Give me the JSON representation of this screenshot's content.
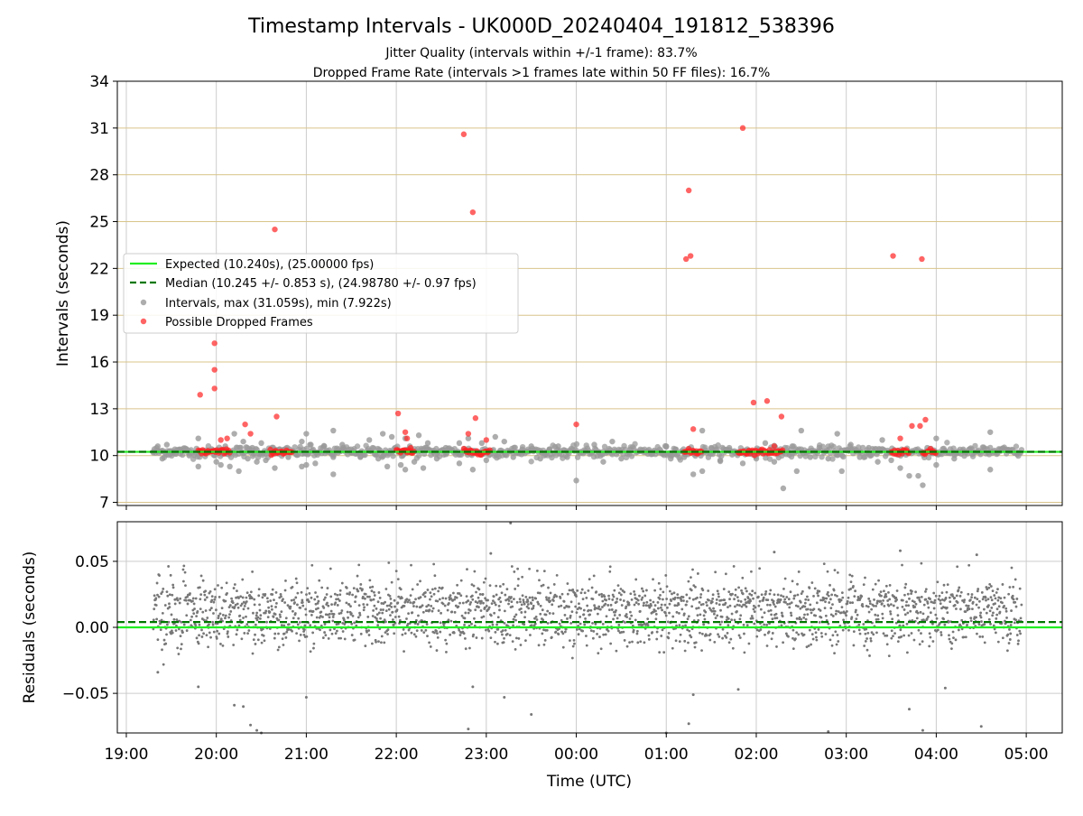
{
  "figure": {
    "title": "Timestamp Intervals - UK000D_20240404_191812_538396",
    "subtitle_1": "Jitter Quality (intervals within +/-1 frame): 83.7%",
    "subtitle_2": "Dropped Frame Rate (intervals >1 frames late within 50 FF files): 16.7%"
  },
  "colors": {
    "expected": "#22ee22",
    "median": "#007700",
    "interval_points": "#999999",
    "dropped_points": "#ff2222",
    "residual_points": "#777777",
    "grid": "#cccccc",
    "hgrid_top": "#d9c48a"
  },
  "chart_data": [
    {
      "type": "scatter",
      "ylabel": "Intervals (seconds)",
      "ylim": [
        6.8,
        34
      ],
      "yticks": [
        7,
        10,
        13,
        16,
        19,
        22,
        25,
        28,
        31,
        34
      ],
      "xlim_hours": [
        18.9,
        29.4
      ],
      "xticks_hours": [
        19,
        20,
        21,
        22,
        23,
        24,
        25,
        26,
        27,
        28,
        29
      ],
      "expected": 10.24,
      "median": 10.245,
      "legend_position": "center-left",
      "legend": [
        "Expected (10.240s), (25.00000 fps)",
        "Median (10.245 +/- 0.853 s), (24.98780 +/- 0.97 fps)",
        "Intervals, max (31.059s), min (7.922s)",
        "Possible Dropped Frames"
      ],
      "series": [
        {
          "name": "Intervals, max (31.059s), min (7.922s)",
          "points": [
            [
              19.3,
              10.25
            ],
            [
              19.35,
              10.6
            ],
            [
              19.4,
              9.8
            ],
            [
              19.45,
              10.7
            ],
            [
              19.5,
              10.3
            ],
            [
              19.55,
              10.1
            ],
            [
              19.6,
              10.4
            ],
            [
              19.7,
              10.0
            ],
            [
              19.8,
              9.3
            ],
            [
              19.8,
              11.1
            ],
            [
              20.0,
              9.6
            ],
            [
              20.05,
              9.4
            ],
            [
              20.1,
              10.6
            ],
            [
              20.15,
              9.3
            ],
            [
              20.2,
              11.4
            ],
            [
              20.25,
              9.0
            ],
            [
              20.3,
              10.9
            ],
            [
              20.35,
              9.8
            ],
            [
              20.4,
              10.5
            ],
            [
              20.45,
              9.6
            ],
            [
              20.5,
              10.8
            ],
            [
              20.55,
              9.7
            ],
            [
              20.65,
              9.2
            ],
            [
              20.7,
              10.4
            ],
            [
              20.8,
              9.9
            ],
            [
              20.95,
              10.9
            ],
            [
              20.95,
              9.3
            ],
            [
              21.0,
              11.4
            ],
            [
              21.0,
              9.4
            ],
            [
              21.05,
              10.7
            ],
            [
              21.1,
              9.5
            ],
            [
              21.2,
              10.6
            ],
            [
              21.3,
              9.9
            ],
            [
              21.3,
              11.6
            ],
            [
              21.3,
              8.8
            ],
            [
              21.4,
              10.7
            ],
            [
              21.5,
              10.2
            ],
            [
              21.6,
              9.9
            ],
            [
              21.7,
              11.0
            ],
            [
              21.8,
              9.8
            ],
            [
              21.85,
              11.4
            ],
            [
              21.9,
              9.3
            ],
            [
              21.95,
              11.2
            ],
            [
              22.05,
              9.4
            ],
            [
              22.1,
              11.1
            ],
            [
              22.1,
              9.1
            ],
            [
              22.15,
              10.6
            ],
            [
              22.2,
              9.6
            ],
            [
              22.25,
              11.3
            ],
            [
              22.3,
              9.2
            ],
            [
              22.35,
              10.8
            ],
            [
              22.45,
              9.8
            ],
            [
              22.55,
              10.5
            ],
            [
              22.7,
              10.8
            ],
            [
              22.7,
              9.5
            ],
            [
              22.8,
              11.1
            ],
            [
              22.85,
              9.1
            ],
            [
              22.95,
              10.8
            ],
            [
              23.0,
              9.7
            ],
            [
              23.1,
              11.2
            ],
            [
              23.2,
              10.9
            ],
            [
              23.3,
              9.9
            ],
            [
              23.4,
              10.4
            ],
            [
              23.5,
              10.6
            ],
            [
              23.6,
              9.8
            ],
            [
              23.7,
              10.4
            ],
            [
              23.8,
              10.6
            ],
            [
              23.9,
              9.9
            ],
            [
              24.0,
              8.4
            ],
            [
              24.1,
              10.3
            ],
            [
              24.2,
              10.7
            ],
            [
              24.3,
              9.6
            ],
            [
              24.4,
              10.9
            ],
            [
              24.5,
              9.8
            ],
            [
              24.6,
              10.4
            ],
            [
              24.8,
              10.3
            ],
            [
              25.0,
              10.6
            ],
            [
              25.05,
              9.8
            ],
            [
              25.1,
              10.4
            ],
            [
              25.2,
              9.9
            ],
            [
              25.3,
              8.8
            ],
            [
              25.4,
              9.0
            ],
            [
              25.4,
              11.6
            ],
            [
              25.5,
              10.5
            ],
            [
              25.6,
              9.7
            ],
            [
              25.7,
              10.5
            ],
            [
              25.85,
              9.5
            ],
            [
              25.9,
              10.3
            ],
            [
              26.0,
              9.8
            ],
            [
              26.1,
              10.8
            ],
            [
              26.2,
              9.6
            ],
            [
              26.3,
              7.9
            ],
            [
              26.4,
              10.6
            ],
            [
              26.45,
              9.0
            ],
            [
              26.5,
              11.6
            ],
            [
              26.6,
              9.9
            ],
            [
              26.7,
              10.5
            ],
            [
              26.8,
              9.8
            ],
            [
              26.9,
              11.4
            ],
            [
              26.95,
              9.0
            ],
            [
              27.05,
              10.7
            ],
            [
              27.15,
              9.9
            ],
            [
              27.25,
              10.5
            ],
            [
              27.35,
              9.6
            ],
            [
              27.4,
              11.0
            ],
            [
              27.5,
              9.7
            ],
            [
              27.6,
              9.2
            ],
            [
              27.7,
              8.7
            ],
            [
              27.8,
              8.7
            ],
            [
              27.85,
              8.1
            ],
            [
              27.9,
              10.5
            ],
            [
              28.0,
              11.1
            ],
            [
              28.0,
              9.4
            ],
            [
              28.1,
              10.3
            ],
            [
              28.2,
              9.8
            ],
            [
              28.3,
              10.4
            ],
            [
              28.4,
              10.1
            ],
            [
              28.6,
              11.5
            ],
            [
              28.6,
              9.1
            ],
            [
              28.8,
              10.3
            ],
            [
              28.9,
              10.2
            ]
          ]
        },
        {
          "name": "Possible Dropped Frames",
          "points": [
            [
              19.82,
              13.9
            ],
            [
              19.98,
              17.2
            ],
            [
              19.98,
              15.5
            ],
            [
              19.98,
              14.3
            ],
            [
              20.05,
              11.0
            ],
            [
              20.12,
              11.1
            ],
            [
              20.32,
              12.0
            ],
            [
              20.38,
              11.4
            ],
            [
              20.65,
              24.5
            ],
            [
              20.67,
              12.5
            ],
            [
              22.02,
              12.7
            ],
            [
              22.1,
              11.5
            ],
            [
              22.12,
              11.1
            ],
            [
              22.16,
              10.5
            ],
            [
              22.75,
              30.6
            ],
            [
              22.8,
              11.4
            ],
            [
              22.85,
              25.6
            ],
            [
              22.88,
              12.4
            ],
            [
              23.0,
              11.0
            ],
            [
              24.0,
              12.0
            ],
            [
              25.22,
              22.6
            ],
            [
              25.25,
              27.0
            ],
            [
              25.27,
              22.8
            ],
            [
              25.3,
              11.7
            ],
            [
              25.85,
              31.0
            ],
            [
              25.97,
              13.4
            ],
            [
              26.12,
              13.5
            ],
            [
              26.2,
              10.6
            ],
            [
              26.28,
              12.5
            ],
            [
              27.52,
              22.8
            ],
            [
              27.6,
              11.1
            ],
            [
              27.73,
              11.9
            ],
            [
              27.82,
              11.9
            ],
            [
              27.84,
              22.6
            ],
            [
              27.88,
              12.3
            ]
          ],
          "dense_runs_at_median": [
            [
              19.8,
              20.15
            ],
            [
              20.6,
              20.85
            ],
            [
              22.0,
              22.2
            ],
            [
              22.75,
              23.05
            ],
            [
              25.2,
              25.4
            ],
            [
              25.8,
              26.3
            ],
            [
              27.5,
              27.7
            ],
            [
              27.85,
              28.0
            ]
          ]
        }
      ]
    },
    {
      "type": "scatter",
      "ylabel": "Residuals (seconds)",
      "xlabel": "Time (UTC)",
      "ylim": [
        -0.08,
        0.08
      ],
      "yticks": [
        -0.05,
        0.0,
        0.05
      ],
      "ytick_labels": [
        "−0.05",
        "0.00",
        "0.05"
      ],
      "xlim_hours": [
        18.9,
        29.4
      ],
      "xticks_hours": [
        19,
        20,
        21,
        22,
        23,
        24,
        25,
        26,
        27,
        28,
        29
      ],
      "xtick_labels": [
        "19:00",
        "20:00",
        "21:00",
        "22:00",
        "23:00",
        "00:00",
        "01:00",
        "02:00",
        "03:00",
        "04:00",
        "05:00"
      ],
      "expected": 0.0,
      "median": 0.004,
      "series_range_hours": [
        19.3,
        28.95
      ],
      "series": [
        {
          "name": "Residuals",
          "outliers": [
            [
              19.35,
              -0.034
            ],
            [
              19.8,
              -0.045
            ],
            [
              20.2,
              -0.059
            ],
            [
              20.3,
              -0.06
            ],
            [
              20.38,
              -0.074
            ],
            [
              20.45,
              -0.078
            ],
            [
              20.5,
              -0.08
            ],
            [
              21.0,
              -0.053
            ],
            [
              22.8,
              -0.077
            ],
            [
              22.85,
              -0.045
            ],
            [
              23.05,
              0.056
            ],
            [
              23.2,
              -0.053
            ],
            [
              23.27,
              0.079
            ],
            [
              23.5,
              -0.066
            ],
            [
              25.0,
              -0.08
            ],
            [
              25.3,
              -0.051
            ],
            [
              25.25,
              -0.073
            ],
            [
              25.8,
              -0.047
            ],
            [
              26.2,
              0.057
            ],
            [
              26.8,
              -0.079
            ],
            [
              27.7,
              -0.062
            ],
            [
              27.85,
              -0.078
            ],
            [
              28.1,
              -0.046
            ],
            [
              28.5,
              -0.075
            ],
            [
              28.45,
              0.055
            ],
            [
              27.6,
              0.058
            ]
          ]
        }
      ]
    }
  ]
}
